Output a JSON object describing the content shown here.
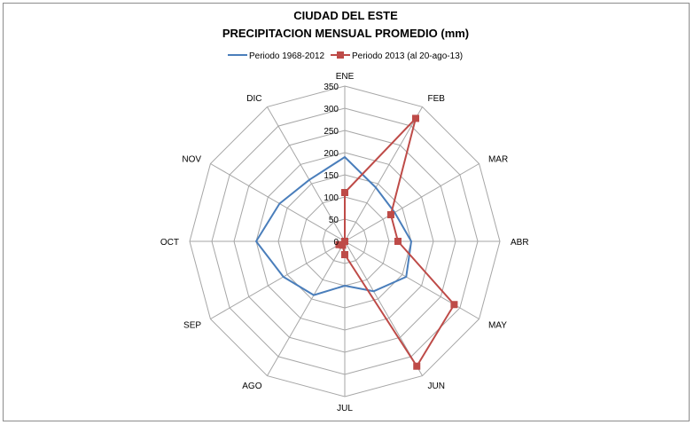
{
  "chart_data": {
    "type": "radar",
    "title": "CIUDAD DEL ESTE",
    "subtitle": "PRECIPITACION MENSUAL PROMEDIO  (mm)",
    "categories": [
      "ENE",
      "FEB",
      "MAR",
      "ABR",
      "MAY",
      "JUN",
      "JUL",
      "AGO",
      "SEP",
      "OCT",
      "NOV",
      "DIC"
    ],
    "r_ticks": [
      "0",
      "50",
      "100",
      "150",
      "200",
      "250",
      "300",
      "350"
    ],
    "r_range": [
      0,
      350
    ],
    "series": [
      {
        "name": "Periodo 1968-2012",
        "color": "#4a7ebb",
        "marker": "none",
        "values": [
          190,
          140,
          130,
          150,
          160,
          130,
          100,
          140,
          160,
          200,
          170,
          160
        ]
      },
      {
        "name": "Periodo 2013 (al 20-ago-13)",
        "color": "#be4b48",
        "marker": "square",
        "values": [
          110,
          320,
          120,
          120,
          285,
          325,
          30,
          10,
          15,
          0,
          0,
          0
        ]
      }
    ],
    "grid": true,
    "legend": "top"
  }
}
